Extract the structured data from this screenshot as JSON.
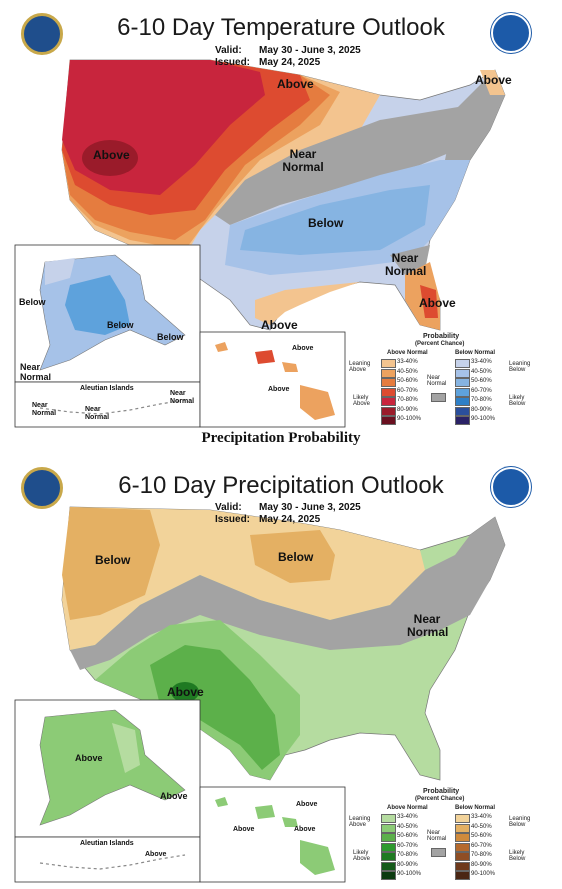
{
  "maps": [
    {
      "id": "temperature",
      "title": "6-10 Day Temperature Outlook",
      "valid_label": "Valid:",
      "valid": "May 30 - June 3, 2025",
      "issued_label": "Issued:",
      "issued": "May 24, 2025",
      "labels": {
        "above_north": "Above",
        "above_ne": "Above",
        "above_west": "Above",
        "near_normal_central": "Near Normal",
        "below_central": "Below",
        "near_normal_se": "Near Normal",
        "above_florida": "Above",
        "above_south": "Above",
        "ak_below_west": "Below",
        "ak_below_center": "Below",
        "ak_below_se": "Below",
        "ak_near_normal": "Near Normal",
        "aleutian": "Aleutian Islands",
        "aleutian_near_normal_1": "Near Normal",
        "aleutian_near_normal_2": "Near Normal",
        "aleutian_near_normal_3": "Near Normal",
        "hi_above_1": "Above",
        "hi_above_2": "Above"
      },
      "legend": {
        "title": "Probability",
        "subtitle": "(Percent Chance)",
        "left_header": "Above Normal",
        "right_header": "Below Normal",
        "leaning_left": "Leaning Above",
        "likely_left": "Likely Above",
        "leaning_right": "Leaning Below",
        "likely_right": "Likely Below",
        "near_normal": "Near Normal",
        "bins": [
          "33-40%",
          "40-50%",
          "50-60%",
          "60-70%",
          "70-80%",
          "80-90%",
          "90-100%"
        ],
        "left_colors": [
          "#f3c48f",
          "#eca25f",
          "#e57c3f",
          "#dd4b30",
          "#c8253d",
          "#9a1b2a",
          "#6a1020"
        ],
        "right_colors": [
          "#c6d2ea",
          "#a6c2e8",
          "#86b4e2",
          "#5ea2dc",
          "#2e80c8",
          "#2a4f9c",
          "#2a2266"
        ],
        "near_color": "#a3a3a3"
      }
    },
    {
      "id": "precipitation",
      "title": "6-10 Day Precipitation Outlook",
      "valid_label": "Valid:",
      "valid": "May 30 - June 3, 2025",
      "issued_label": "Issued:",
      "issued": "May 24, 2025",
      "labels": {
        "below_west": "Below",
        "below_north": "Below",
        "near_normal_ne": "Near Normal",
        "above_sw": "Above",
        "ak_above_1": "Above",
        "ak_above_2": "Above",
        "aleutian": "Aleutian Islands",
        "aleutian_above": "Above",
        "hi_above_1": "Above",
        "hi_above_2": "Above",
        "hi_above_3": "Above"
      },
      "legend": {
        "title": "Probability",
        "subtitle": "(Percent Chance)",
        "left_header": "Above Normal",
        "right_header": "Below Normal",
        "leaning_left": "Leaning Above",
        "likely_left": "Likely Above",
        "leaning_right": "Leaning Below",
        "likely_right": "Likely Below",
        "near_normal": "Near Normal",
        "bins": [
          "33-40%",
          "40-50%",
          "50-60%",
          "60-70%",
          "70-80%",
          "80-90%",
          "90-100%"
        ],
        "left_colors": [
          "#b5dca0",
          "#8ccb76",
          "#5cb04a",
          "#2e9a2e",
          "#1f7a22",
          "#155a1a",
          "#0c3a10"
        ],
        "right_colors": [
          "#f2d39a",
          "#e4b063",
          "#cf8a3c",
          "#b56a2d",
          "#8f4e24",
          "#6e3a1c",
          "#4a2614"
        ],
        "near_color": "#a3a3a3"
      }
    }
  ],
  "separator_heading": "Precipitation Probability",
  "icons": {
    "left_emblem": "commerce-seal-icon",
    "right_emblem": "noaa-logo-icon"
  }
}
